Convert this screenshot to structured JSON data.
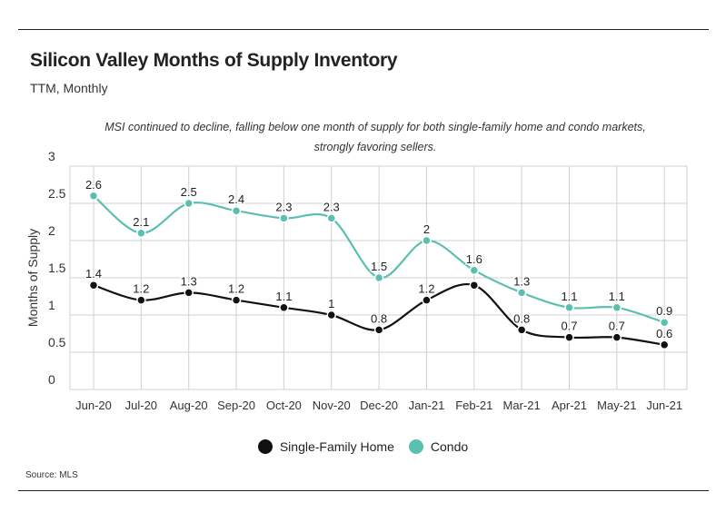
{
  "header": {
    "title": "Silicon Valley Months of Supply Inventory",
    "subtitle": "TTM, Monthly"
  },
  "annotation": "MSI continued to decline, falling below one month of supply for both single-family home and condo markets, strongly favoring sellers.",
  "source": "Source:  MLS",
  "colors": {
    "single_family": "#111111",
    "condo": "#5bbfb0",
    "grid": "#d0d0d0"
  },
  "chart_data": {
    "type": "line",
    "ylabel": "Months of Supply",
    "xlabel": "",
    "ylim": [
      0,
      3
    ],
    "yticks": [
      "0",
      "0.5",
      "1",
      "1.5",
      "2",
      "2.5",
      "3"
    ],
    "grid": true,
    "legend_position": "bottom",
    "categories": [
      "Jun-20",
      "Jul-20",
      "Aug-20",
      "Sep-20",
      "Oct-20",
      "Nov-20",
      "Dec-20",
      "Jan-21",
      "Feb-21",
      "Mar-21",
      "Apr-21",
      "May-21",
      "Jun-21"
    ],
    "series": [
      {
        "name": "Single-Family Home",
        "values": [
          1.4,
          1.2,
          1.3,
          1.2,
          1.1,
          1,
          0.8,
          1.2,
          1.4,
          0.8,
          0.7,
          0.7,
          0.6
        ],
        "labels": [
          "1.4",
          "1.2",
          "1.3",
          "1.2",
          "1.1",
          "1",
          "0.8",
          "1.2",
          "",
          "0.8",
          "0.7",
          "0.7",
          "0.6"
        ]
      },
      {
        "name": "Condo",
        "values": [
          2.6,
          2.1,
          2.5,
          2.4,
          2.3,
          2.3,
          1.5,
          2,
          1.6,
          1.3,
          1.1,
          1.1,
          0.9
        ],
        "labels": [
          "2.6",
          "2.1",
          "2.5",
          "2.4",
          "2.3",
          "2.3",
          "1.5",
          "2",
          "1.6",
          "1.3",
          "1.1",
          "1.1",
          "0.9"
        ]
      }
    ]
  }
}
